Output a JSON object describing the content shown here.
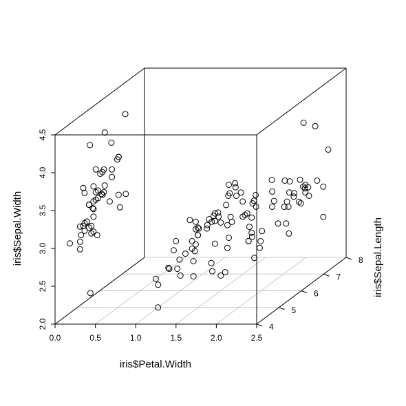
{
  "chart_data": {
    "type": "scatter",
    "projection": "3d",
    "title": "",
    "xlabel": "iris$Petal.Width",
    "ylabel": "iris$Sepal.Length",
    "zlabel": "iris$Sepal.Width",
    "xlim": [
      0.0,
      2.5
    ],
    "ylim": [
      4,
      8
    ],
    "zlim": [
      2.0,
      4.5
    ],
    "x_ticks": [
      "0.0",
      "0.5",
      "1.0",
      "1.5",
      "2.0",
      "2.5"
    ],
    "y_ticks": [
      "4",
      "5",
      "6",
      "7",
      "8"
    ],
    "z_ticks": [
      "2.0",
      "2.5",
      "3.0",
      "3.5",
      "4.0",
      "4.5"
    ],
    "grid": "floor",
    "colors": {
      "axis": "#000000",
      "grid": "#c8c8c8",
      "points": "#000000"
    },
    "points": [
      [
        0.2,
        5.1,
        3.5
      ],
      [
        0.2,
        4.9,
        3.0
      ],
      [
        0.2,
        4.7,
        3.2
      ],
      [
        0.2,
        4.6,
        3.1
      ],
      [
        0.2,
        5.0,
        3.6
      ],
      [
        0.4,
        5.4,
        3.9
      ],
      [
        0.3,
        4.6,
        3.4
      ],
      [
        0.2,
        5.0,
        3.4
      ],
      [
        0.2,
        4.4,
        2.9
      ],
      [
        0.1,
        4.9,
        3.1
      ],
      [
        0.2,
        5.4,
        3.7
      ],
      [
        0.2,
        4.8,
        3.4
      ],
      [
        0.1,
        4.8,
        3.0
      ],
      [
        0.1,
        4.3,
        3.0
      ],
      [
        0.2,
        5.8,
        4.0
      ],
      [
        0.4,
        5.7,
        4.4
      ],
      [
        0.4,
        5.4,
        3.9
      ],
      [
        0.3,
        5.1,
        3.5
      ],
      [
        0.3,
        5.7,
        3.8
      ],
      [
        0.3,
        5.1,
        3.8
      ],
      [
        0.2,
        5.4,
        3.4
      ],
      [
        0.4,
        5.1,
        3.7
      ],
      [
        0.2,
        4.6,
        3.6
      ],
      [
        0.5,
        5.1,
        3.3
      ],
      [
        0.2,
        4.8,
        3.4
      ],
      [
        0.2,
        5.0,
        3.0
      ],
      [
        0.4,
        5.0,
        3.4
      ],
      [
        0.2,
        5.2,
        3.5
      ],
      [
        0.2,
        5.2,
        3.4
      ],
      [
        0.2,
        4.7,
        3.2
      ],
      [
        0.2,
        4.8,
        3.1
      ],
      [
        0.4,
        5.4,
        3.4
      ],
      [
        0.1,
        5.2,
        4.1
      ],
      [
        0.2,
        5.5,
        4.2
      ],
      [
        0.2,
        4.9,
        3.1
      ],
      [
        0.2,
        5.0,
        3.2
      ],
      [
        0.2,
        5.5,
        3.5
      ],
      [
        0.1,
        4.9,
        3.6
      ],
      [
        0.2,
        4.4,
        3.0
      ],
      [
        0.2,
        5.1,
        3.4
      ],
      [
        0.3,
        5.0,
        3.5
      ],
      [
        0.3,
        4.5,
        2.3
      ],
      [
        0.2,
        4.4,
        3.2
      ],
      [
        0.6,
        5.0,
        3.5
      ],
      [
        0.4,
        5.1,
        3.8
      ],
      [
        0.3,
        4.8,
        3.0
      ],
      [
        0.2,
        5.1,
        3.8
      ],
      [
        0.2,
        4.6,
        3.2
      ],
      [
        0.2,
        5.3,
        3.7
      ],
      [
        0.2,
        5.0,
        3.3
      ],
      [
        1.4,
        7.0,
        3.2
      ],
      [
        1.5,
        6.4,
        3.2
      ],
      [
        1.5,
        6.9,
        3.1
      ],
      [
        1.3,
        5.5,
        2.3
      ],
      [
        1.5,
        6.5,
        2.8
      ],
      [
        1.3,
        5.7,
        2.8
      ],
      [
        1.6,
        6.3,
        3.3
      ],
      [
        1.0,
        4.9,
        2.4
      ],
      [
        1.3,
        6.6,
        2.9
      ],
      [
        1.4,
        5.2,
        2.7
      ],
      [
        1.0,
        5.0,
        2.0
      ],
      [
        1.5,
        5.9,
        3.0
      ],
      [
        1.0,
        6.0,
        2.2
      ],
      [
        1.4,
        6.1,
        2.9
      ],
      [
        1.3,
        5.6,
        2.9
      ],
      [
        1.4,
        6.7,
        3.1
      ],
      [
        1.5,
        5.6,
        3.0
      ],
      [
        1.0,
        5.8,
        2.7
      ],
      [
        1.5,
        6.2,
        2.2
      ],
      [
        1.1,
        5.6,
        2.5
      ],
      [
        1.8,
        5.9,
        3.2
      ],
      [
        1.3,
        6.1,
        2.8
      ],
      [
        1.5,
        6.3,
        2.5
      ],
      [
        1.2,
        6.1,
        2.8
      ],
      [
        1.3,
        6.4,
        2.9
      ],
      [
        1.4,
        6.6,
        3.0
      ],
      [
        1.4,
        6.8,
        2.8
      ],
      [
        1.7,
        6.7,
        3.0
      ],
      [
        1.5,
        6.0,
        2.9
      ],
      [
        1.0,
        5.7,
        2.6
      ],
      [
        1.1,
        5.5,
        2.4
      ],
      [
        1.0,
        5.5,
        2.4
      ],
      [
        1.2,
        5.8,
        2.7
      ],
      [
        1.6,
        6.0,
        2.7
      ],
      [
        1.5,
        5.4,
        3.0
      ],
      [
        1.6,
        6.0,
        3.4
      ],
      [
        1.5,
        6.7,
        3.1
      ],
      [
        1.3,
        6.3,
        2.3
      ],
      [
        1.3,
        5.6,
        3.0
      ],
      [
        1.3,
        5.5,
        2.5
      ],
      [
        1.2,
        5.5,
        2.6
      ],
      [
        1.4,
        6.1,
        3.0
      ],
      [
        1.2,
        5.8,
        2.6
      ],
      [
        1.0,
        5.0,
        2.3
      ],
      [
        1.3,
        5.6,
        2.7
      ],
      [
        1.2,
        5.7,
        3.0
      ],
      [
        1.3,
        5.7,
        2.9
      ],
      [
        1.3,
        6.2,
        2.9
      ],
      [
        1.1,
        5.1,
        2.5
      ],
      [
        1.3,
        5.7,
        2.8
      ],
      [
        2.5,
        6.3,
        3.3
      ],
      [
        1.9,
        5.8,
        2.7
      ],
      [
        2.1,
        7.1,
        3.0
      ],
      [
        1.8,
        6.3,
        2.9
      ],
      [
        2.2,
        6.5,
        3.0
      ],
      [
        2.1,
        7.6,
        3.0
      ],
      [
        1.7,
        4.9,
        2.5
      ],
      [
        1.8,
        7.3,
        2.9
      ],
      [
        1.8,
        6.7,
        2.5
      ],
      [
        2.5,
        7.2,
        3.6
      ],
      [
        2.0,
        6.5,
        3.2
      ],
      [
        1.9,
        6.4,
        2.7
      ],
      [
        2.1,
        6.8,
        3.0
      ],
      [
        2.0,
        5.7,
        2.5
      ],
      [
        2.4,
        5.8,
        2.8
      ],
      [
        2.3,
        6.4,
        3.2
      ],
      [
        1.8,
        6.5,
        3.0
      ],
      [
        2.2,
        7.7,
        3.8
      ],
      [
        2.3,
        7.7,
        2.6
      ],
      [
        1.5,
        6.0,
        2.2
      ],
      [
        2.3,
        6.9,
        3.2
      ],
      [
        2.0,
        5.6,
        2.8
      ],
      [
        2.0,
        7.7,
        2.8
      ],
      [
        1.8,
        6.3,
        2.7
      ],
      [
        2.1,
        6.7,
        3.3
      ],
      [
        1.8,
        7.2,
        3.2
      ],
      [
        1.8,
        6.2,
        2.8
      ],
      [
        1.8,
        6.1,
        3.0
      ],
      [
        2.1,
        6.4,
        2.8
      ],
      [
        1.6,
        7.2,
        3.0
      ],
      [
        1.9,
        7.4,
        2.8
      ],
      [
        2.0,
        7.9,
        3.8
      ],
      [
        2.2,
        6.4,
        2.8
      ],
      [
        1.5,
        6.3,
        2.8
      ],
      [
        1.4,
        6.1,
        2.6
      ],
      [
        2.3,
        7.7,
        3.0
      ],
      [
        2.4,
        6.3,
        3.4
      ],
      [
        1.8,
        6.4,
        3.1
      ],
      [
        1.8,
        6.0,
        3.0
      ],
      [
        2.1,
        6.9,
        3.1
      ],
      [
        2.4,
        6.7,
        3.1
      ],
      [
        2.3,
        6.9,
        3.1
      ],
      [
        1.9,
        5.8,
        2.7
      ],
      [
        2.3,
        6.8,
        3.2
      ],
      [
        2.5,
        6.7,
        3.3
      ],
      [
        2.3,
        6.7,
        3.0
      ],
      [
        1.9,
        6.3,
        2.5
      ],
      [
        2.0,
        6.5,
        3.0
      ],
      [
        2.3,
        6.2,
        3.4
      ],
      [
        1.8,
        5.9,
        3.0
      ]
    ]
  }
}
